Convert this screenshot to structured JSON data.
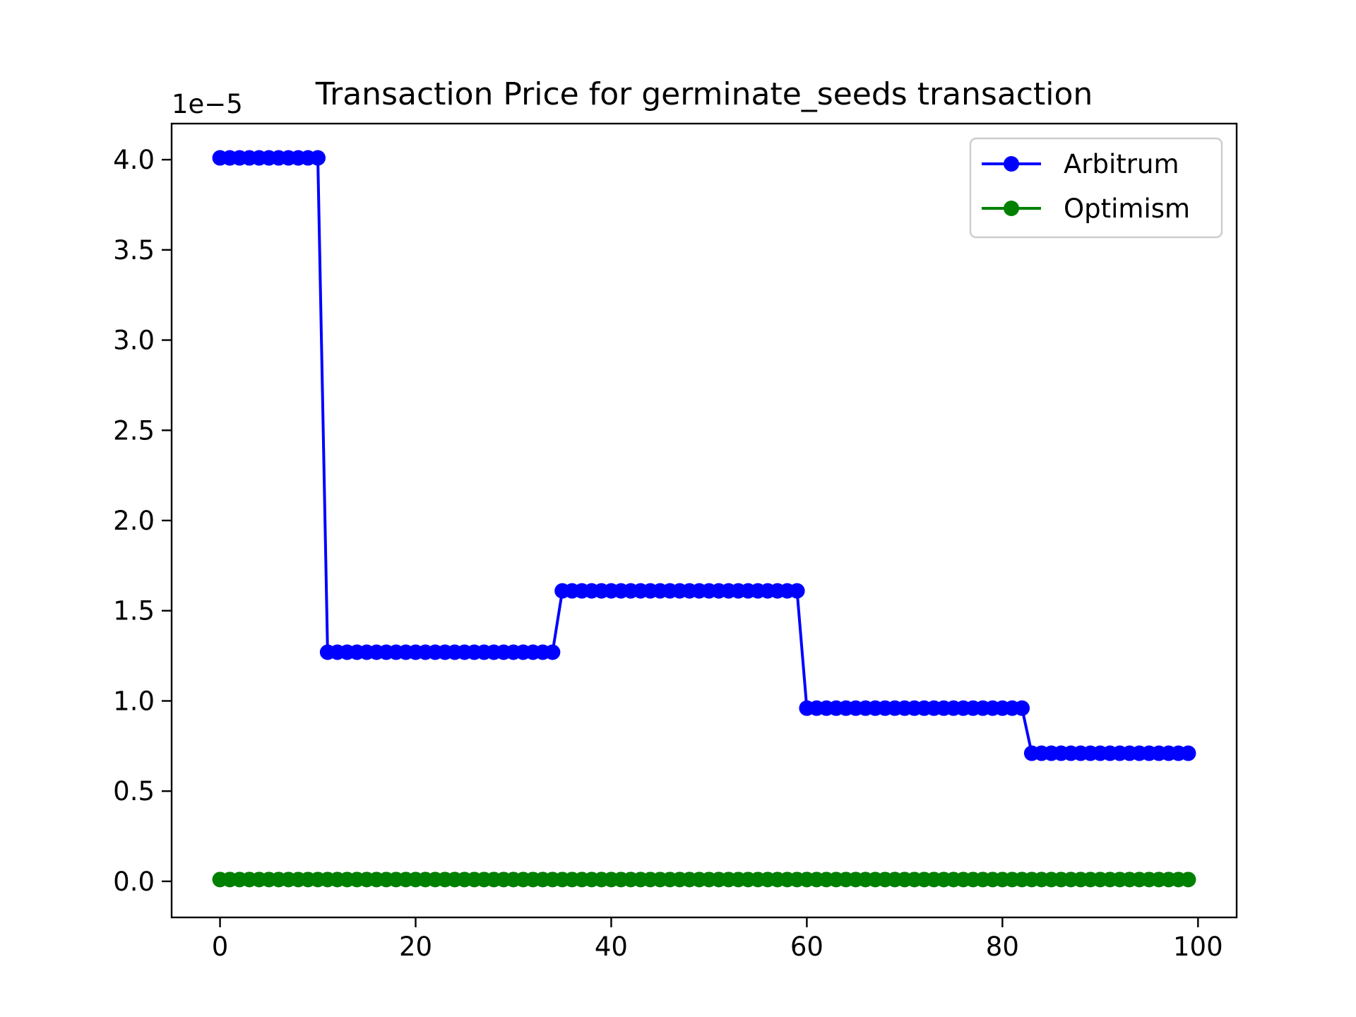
{
  "chart_data": {
    "type": "line",
    "title": "Transaction Price for germinate_seeds transaction",
    "y_offset_label": "1e−5",
    "xlabel": "",
    "ylabel": "",
    "xlim": [
      -4.95,
      103.95
    ],
    "ylim": [
      -0.2,
      4.2
    ],
    "x_ticks": [
      0,
      20,
      40,
      60,
      80,
      100
    ],
    "x_tick_labels": [
      "0",
      "20",
      "40",
      "60",
      "80",
      "100"
    ],
    "y_ticks": [
      0.0,
      0.5,
      1.0,
      1.5,
      2.0,
      2.5,
      3.0,
      3.5,
      4.0
    ],
    "y_tick_labels": [
      "0.0",
      "0.5",
      "1.0",
      "1.5",
      "2.0",
      "2.5",
      "3.0",
      "3.5",
      "4.0"
    ],
    "grid": false,
    "legend_position": "top-right",
    "series": [
      {
        "name": "Arbitrum",
        "color": "#0000ff",
        "marker": "circle",
        "segments": [
          {
            "x_start": 0,
            "x_end": 10,
            "value": 4.01
          },
          {
            "x_start": 11,
            "x_end": 34,
            "value": 1.27
          },
          {
            "x_start": 35,
            "x_end": 59,
            "value": 1.61
          },
          {
            "x_start": 60,
            "x_end": 82,
            "value": 0.96
          },
          {
            "x_start": 83,
            "x_end": 99,
            "value": 0.71
          }
        ]
      },
      {
        "name": "Optimism",
        "color": "#008000",
        "marker": "circle",
        "segments": [
          {
            "x_start": 0,
            "x_end": 99,
            "value": 0.01
          }
        ]
      }
    ]
  }
}
